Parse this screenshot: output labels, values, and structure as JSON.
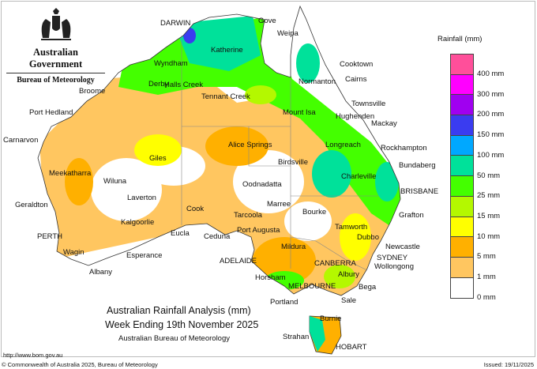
{
  "header": {
    "government": "Australian Government",
    "agency": "Bureau of Meteorology"
  },
  "map": {
    "title": "Australian Rainfall Analysis (mm)",
    "subtitle": "Week Ending 19th November 2025",
    "source": "Australian Bureau of Meteorology",
    "places": [
      "DARWIN",
      "Gove",
      "Weipa",
      "Katherine",
      "Wyndham",
      "Cooktown",
      "Derby",
      "Halls Creek",
      "Normanton",
      "Cairns",
      "Broome",
      "Tennant Creek",
      "Townsville",
      "Port Hedland",
      "Mount Isa",
      "Hughenden",
      "Mackay",
      "Alice Springs",
      "Longreach",
      "Rockhampton",
      "Carnarvon",
      "Birdsville",
      "Bundaberg",
      "Meekatharra",
      "Giles",
      "Wiluna",
      "Charleville",
      "Oodnadatta",
      "BRISBANE",
      "Geraldton",
      "Laverton",
      "Marree",
      "Bourke",
      "Grafton",
      "Cook",
      "Kalgoorlie",
      "Tarcoola",
      "Tamworth",
      "Eucla",
      "Ceduna",
      "Port Augusta",
      "Dubbo",
      "Newcastle",
      "PERTH",
      "Mildura",
      "SYDNEY",
      "Wagin",
      "Esperance",
      "ADELAIDE",
      "CANBERRA",
      "Wollongong",
      "Albany",
      "Horsham",
      "Albury",
      "Bega",
      "MELBOURNE",
      "Portland",
      "Sale",
      "Burnie",
      "Strahan",
      "HOBART"
    ]
  },
  "legend": {
    "title": "Rainfall (mm)",
    "ticks": [
      "400 mm",
      "300 mm",
      "200 mm",
      "150 mm",
      "100 mm",
      "50 mm",
      "25 mm",
      "15 mm",
      "10 mm",
      "5 mm",
      "1 mm",
      "0 mm"
    ],
    "colors": [
      "#ff4f9a",
      "#ff00ff",
      "#a000f0",
      "#3a3cf0",
      "#00a8ff",
      "#00e19a",
      "#44ff00",
      "#b4f800",
      "#ffff00",
      "#ffb000",
      "#ffc660",
      "#ffffff"
    ]
  },
  "footer": {
    "url": "http://www.bom.gov.au",
    "copyright": "© Commonwealth of Australia 2025, Bureau of Meteorology",
    "issued": "Issued: 19/11/2025"
  }
}
